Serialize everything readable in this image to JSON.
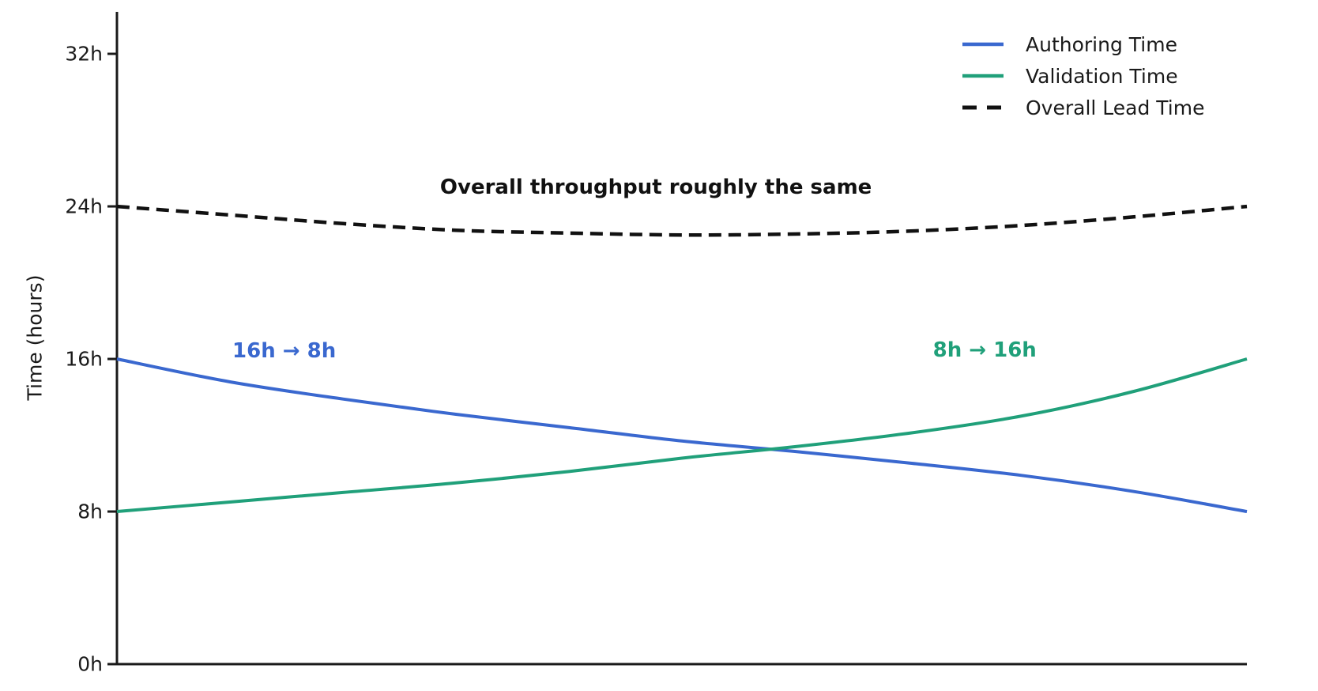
{
  "chart_data": {
    "type": "line",
    "title": "",
    "xlabel": "",
    "ylabel": "Time (hours)",
    "ylim": [
      0,
      34.2
    ],
    "x_range": [
      0,
      1
    ],
    "grid": false,
    "legend_position": "upper right",
    "x": [
      0,
      0.1,
      0.2,
      0.3,
      0.4,
      0.5,
      0.6,
      0.7,
      0.8,
      0.9,
      1.0
    ],
    "series": [
      {
        "name": "Authoring Time",
        "color": "#3A68CF",
        "style": "solid",
        "values": [
          16.0,
          14.8,
          13.9,
          13.1,
          12.4,
          11.7,
          11.15,
          10.55,
          9.9,
          9.05,
          8.0
        ]
      },
      {
        "name": "Validation Time",
        "color": "#20A07A",
        "style": "solid",
        "values": [
          8.0,
          8.5,
          9.0,
          9.5,
          10.1,
          10.8,
          11.4,
          12.1,
          13.0,
          14.3,
          16.0
        ]
      },
      {
        "name": "Overall Lead Time",
        "color": "#111111",
        "style": "dashed",
        "values": [
          24.0,
          23.55,
          23.1,
          22.75,
          22.6,
          22.5,
          22.55,
          22.7,
          23.0,
          23.45,
          24.0
        ]
      }
    ],
    "yticks": [
      {
        "value": 0,
        "label": "0h"
      },
      {
        "value": 8,
        "label": "8h"
      },
      {
        "value": 16,
        "label": "16h"
      },
      {
        "value": 24,
        "label": "24h"
      },
      {
        "value": 32,
        "label": "32h"
      }
    ],
    "annotations": [
      {
        "text": "Overall throughput roughly the same",
        "color": "#111111",
        "x": 0.477,
        "y": 25.0
      },
      {
        "text": "16h → 8h",
        "color": "#3A68CF",
        "x": 0.148,
        "y": 16.43
      },
      {
        "text": "8h → 16h",
        "color": "#20A07A",
        "x": 0.768,
        "y": 16.47
      }
    ],
    "axis_color": "#1a1a1a"
  }
}
